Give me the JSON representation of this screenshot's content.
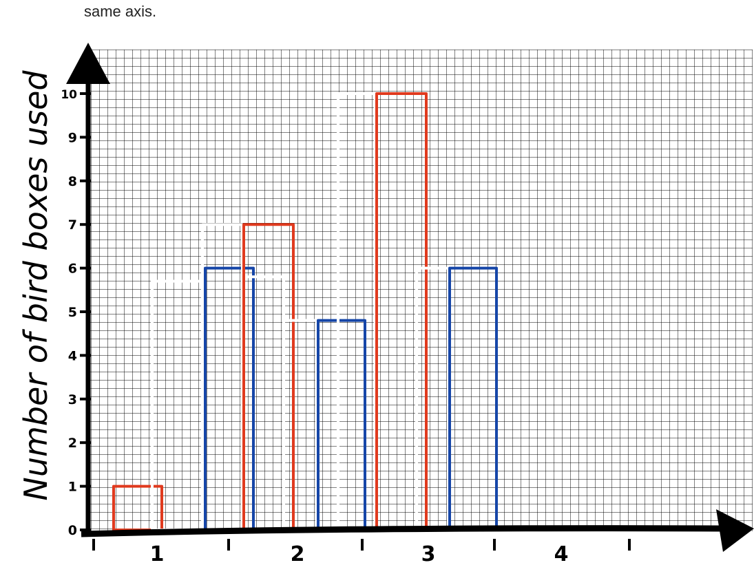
{
  "header": {
    "caption": "same axis."
  },
  "chart_data": {
    "type": "bar",
    "ylabel": "Number of bird boxes used",
    "xlabel": "",
    "ylim": [
      0,
      10
    ],
    "y_ticks": [
      "0",
      "1",
      "2",
      "3",
      "4",
      "5",
      "6",
      "7",
      "8",
      "9",
      "10"
    ],
    "x_tick_labels": [
      "1",
      "2",
      "3",
      "4"
    ],
    "grid": true,
    "colors": {
      "red": "#e03a1e",
      "blue": "#1646a8",
      "white": "#ffffff",
      "grid": "#000000",
      "axis": "#000000"
    },
    "groups": [
      {
        "x_label": "1",
        "bars": [
          {
            "color": "red",
            "value": 1
          },
          {
            "color": "white",
            "value": 5.7
          },
          {
            "color": "blue",
            "value": 6
          },
          {
            "color": "white",
            "value": 5.8
          }
        ]
      },
      {
        "x_label": "2",
        "bars": [
          {
            "color": "white",
            "value": 7
          },
          {
            "color": "red",
            "value": 7
          },
          {
            "color": "white",
            "value": 4.8
          },
          {
            "color": "blue",
            "value": 4.8
          }
        ]
      },
      {
        "x_label": "3",
        "bars": [
          {
            "color": "white",
            "value": 10
          },
          {
            "color": "red",
            "value": 10
          },
          {
            "color": "white",
            "value": 6
          },
          {
            "color": "blue",
            "value": 6
          }
        ]
      }
    ]
  }
}
